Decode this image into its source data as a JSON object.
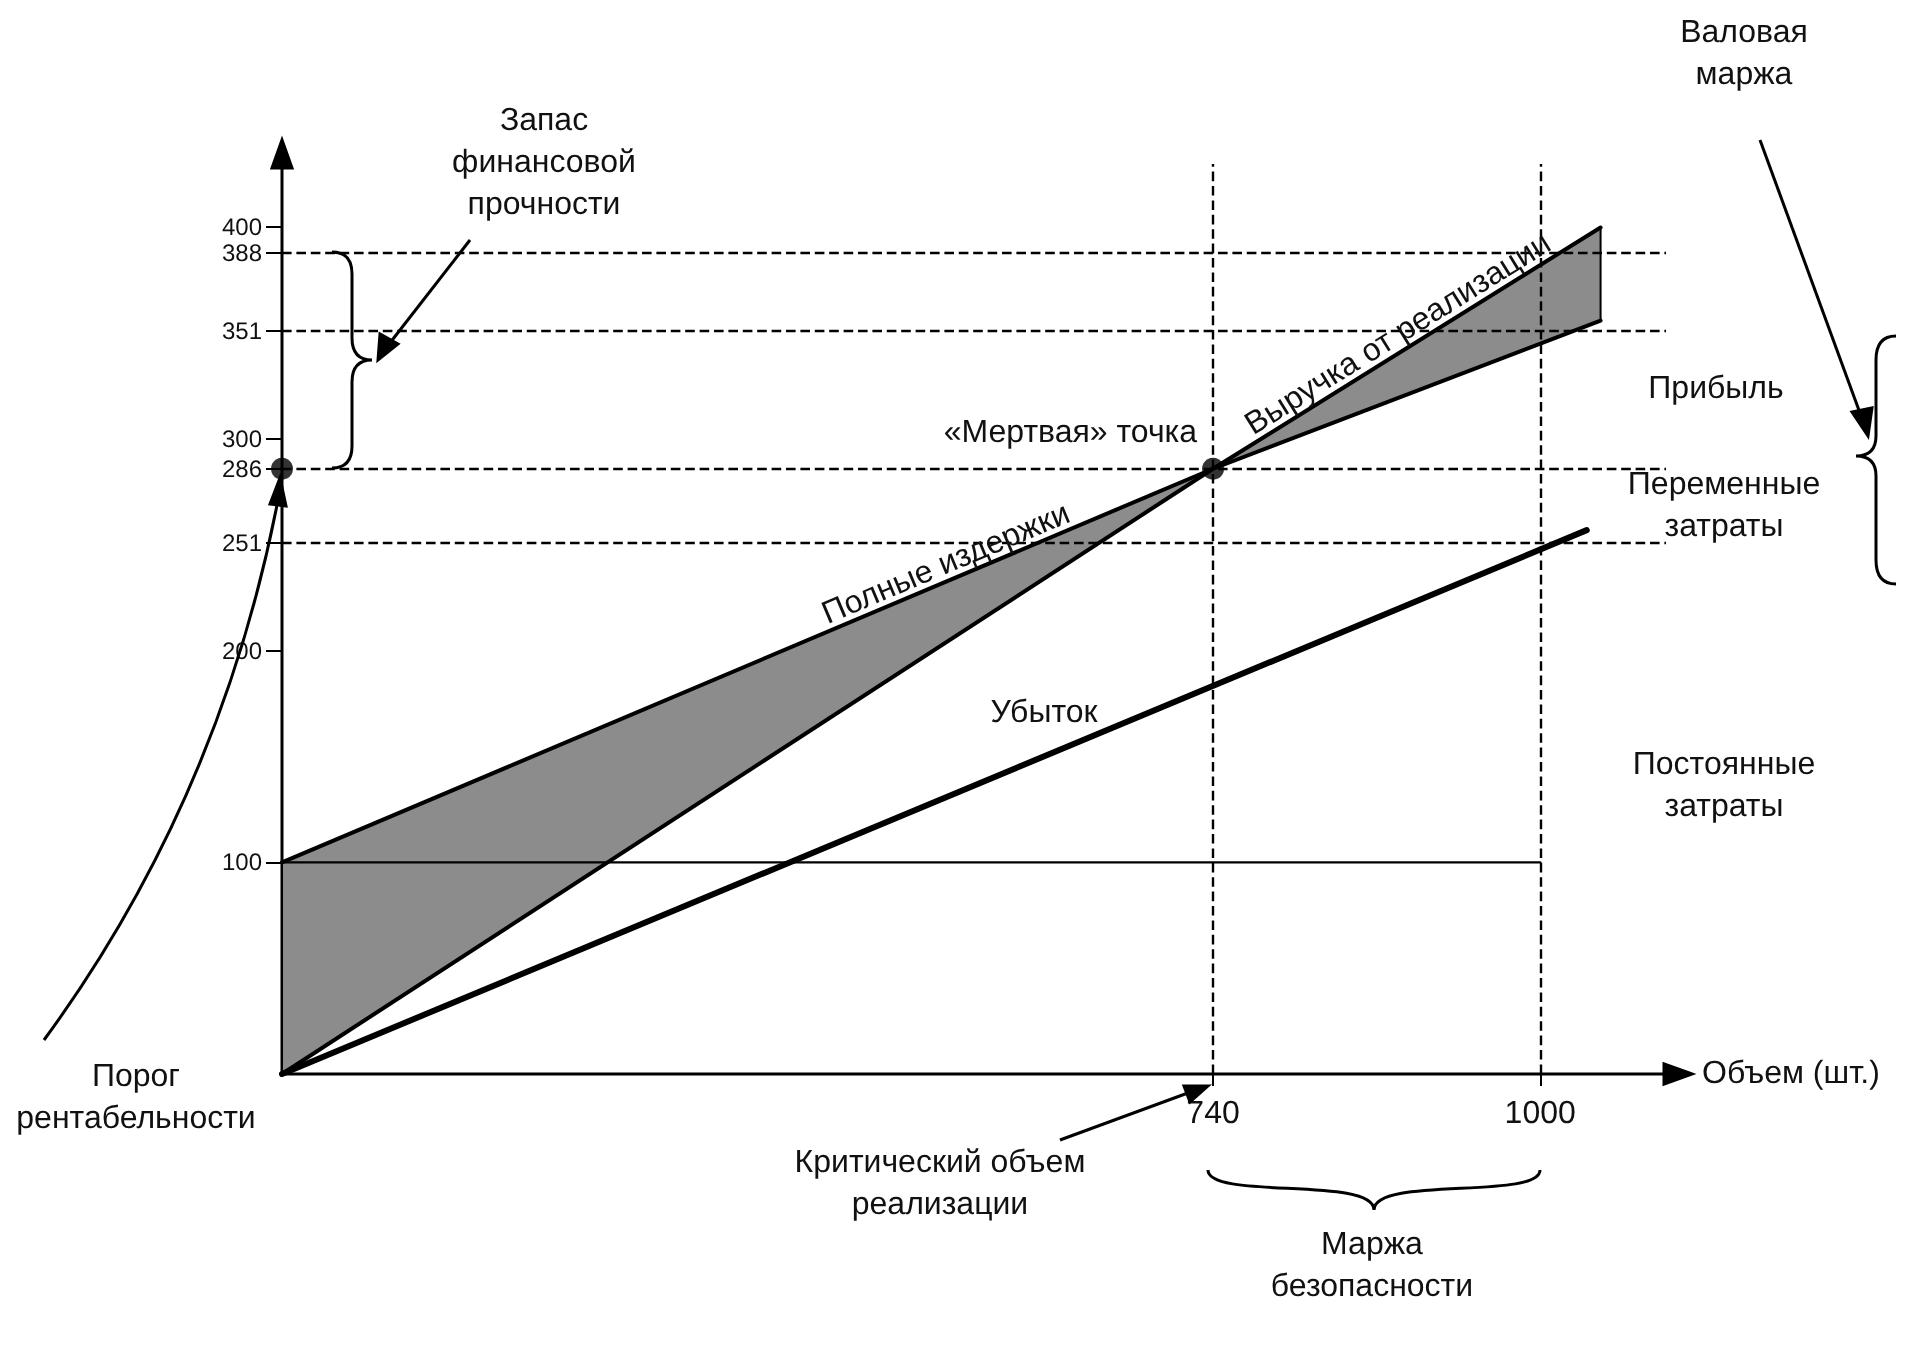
{
  "chart_data": {
    "type": "line",
    "xlabel": "Объем (шт.)",
    "xlim": [
      0,
      1100
    ],
    "ylim": [
      0,
      430
    ],
    "xticks": [
      740,
      1000
    ],
    "yticks": [
      100,
      200,
      251,
      286,
      300,
      351,
      388,
      400
    ],
    "grid": false,
    "legend": false,
    "marker": "none",
    "line_style": "solid",
    "series": [
      {
        "name": "Полные издержки",
        "color": "#000000",
        "x": [
          0,
          740,
          1048
        ],
        "values": [
          100,
          286,
          356
        ],
        "lower": [
          0,
          286,
          356
        ],
        "upper": [
          100,
          286,
          400
        ]
      },
      {
        "name": "Выручка от реализации",
        "color": "#000000",
        "x": [
          0,
          740,
          1048
        ],
        "values": [
          0,
          286,
          400
        ]
      },
      {
        "color": "#000000",
        "x": [
          0,
          1037
        ],
        "values": [
          0,
          257
        ]
      },
      {
        "color": "#000000",
        "x": [
          0,
          1000
        ],
        "values": [
          100,
          100
        ]
      },
      {
        "type": "scatter",
        "marker": "circle",
        "color": "#000000",
        "x": [
          0,
          740
        ],
        "values": [
          286,
          286
        ]
      }
    ],
    "ref_lines": [
      {
        "axis": "y",
        "value": 388,
        "line_style": "dashed"
      },
      {
        "axis": "y",
        "value": 351,
        "line_style": "dashed"
      },
      {
        "axis": "y",
        "value": 286,
        "line_style": "dashed"
      },
      {
        "axis": "y",
        "value": 251,
        "line_style": "dashed"
      },
      {
        "axis": "x",
        "value": 740,
        "line_style": "dashed"
      },
      {
        "axis": "x",
        "value": 1000,
        "line_style": "dashed"
      }
    ],
    "annotations": [
      "Запас финансовой прочности",
      "Валовая маржа",
      "Прибыль",
      "Переменные затраты",
      "Постоянные затраты",
      "Порог рентабельности",
      "Критический объем реализации",
      "Маржа безопасности",
      {
        "text": "«Мертвая» точка",
        "x": 740,
        "y": 286
      },
      "Убыток"
    ]
  }
}
